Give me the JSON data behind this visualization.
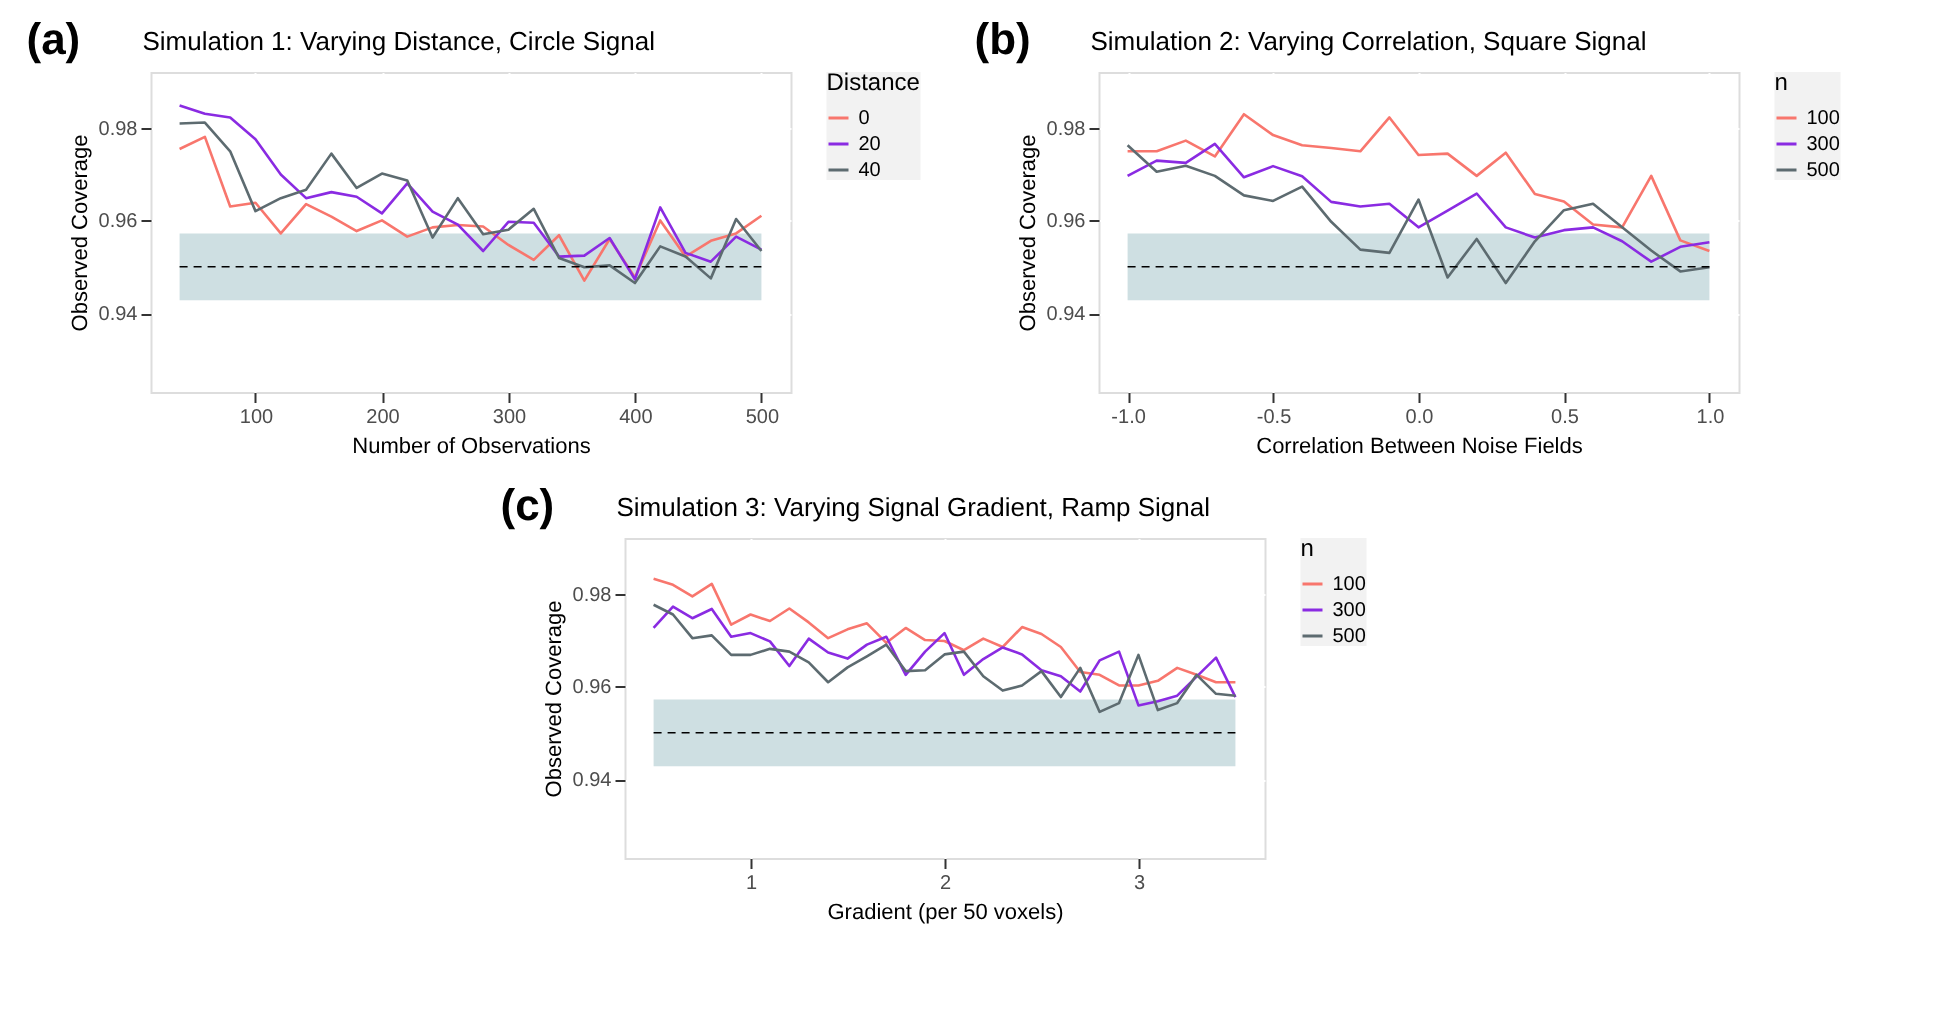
{
  "chart_data": [
    {
      "type": "line",
      "title": "Simulation 1: Varying Distance, Circle Signal",
      "annotations": [
        "(a)"
      ],
      "xlabel": "Number of Observations",
      "ylabel": "Observed Coverage",
      "legend_title": "Distance",
      "legend": "right",
      "grid": true,
      "x": [
        40,
        60,
        80,
        100,
        120,
        140,
        160,
        180,
        200,
        220,
        240,
        260,
        280,
        300,
        320,
        340,
        360,
        380,
        400,
        420,
        440,
        460,
        480,
        500
      ],
      "xlim": [
        17,
        523
      ],
      "xticks": [
        100,
        200,
        300,
        400,
        500
      ],
      "ylim": [
        0.923,
        0.992
      ],
      "yticks": [
        0.94,
        0.96,
        0.98
      ],
      "bands": [
        {
          "axis": "y",
          "from": 0.9428,
          "to": 0.9572,
          "color": "#c5d9dd"
        }
      ],
      "ref_lines": [
        {
          "axis": "y",
          "value": 0.95,
          "color": "#000000",
          "line_style": "dashed"
        }
      ],
      "series": [
        {
          "name": "0",
          "color": "#f8766d",
          "values": [
            0.9754,
            0.978,
            0.963,
            0.9638,
            0.9572,
            0.9635,
            0.9608,
            0.9577,
            0.96,
            0.9565,
            0.9585,
            0.959,
            0.9587,
            0.9547,
            0.9515,
            0.9568,
            0.947,
            0.956,
            0.9477,
            0.96,
            0.9522,
            0.9556,
            0.9572,
            0.961
          ]
        },
        {
          "name": "20",
          "color": "#8a2be2",
          "values": [
            0.9848,
            0.983,
            0.9822,
            0.9775,
            0.9699,
            0.9648,
            0.9661,
            0.9651,
            0.9615,
            0.968,
            0.9619,
            0.9591,
            0.9534,
            0.9597,
            0.9595,
            0.9522,
            0.9524,
            0.9562,
            0.9473,
            0.9628,
            0.953,
            0.9511,
            0.9565,
            0.9537
          ]
        },
        {
          "name": "40",
          "color": "#5d6b70",
          "values": [
            0.9809,
            0.9811,
            0.9749,
            0.962,
            0.9648,
            0.9666,
            0.9744,
            0.967,
            0.9701,
            0.9686,
            0.9563,
            0.9648,
            0.957,
            0.958,
            0.9625,
            0.9519,
            0.9499,
            0.9503,
            0.9465,
            0.9544,
            0.9522,
            0.9475,
            0.9603,
            0.9534
          ]
        }
      ]
    },
    {
      "type": "line",
      "title": "Simulation 2: Varying Correlation, Square Signal",
      "annotations": [
        "(b)"
      ],
      "xlabel": "Correlation Between Noise Fields",
      "ylabel": "Observed Coverage",
      "legend_title": "n",
      "legend": "right",
      "grid": true,
      "x": [
        -1.0,
        -0.9,
        -0.8,
        -0.7,
        -0.6,
        -0.5,
        -0.4,
        -0.3,
        -0.2,
        -0.1,
        0.0,
        0.1,
        0.2,
        0.3,
        0.4,
        0.5,
        0.6,
        0.7,
        0.8,
        0.9,
        1.0
      ],
      "xlim": [
        -1.1,
        1.1
      ],
      "xticks": [
        {
          "value": -1,
          "label": "-1.0"
        },
        {
          "value": -0.5,
          "label": "-0.5"
        },
        {
          "value": 0,
          "label": "0.0"
        },
        {
          "value": 0.5,
          "label": "0.5"
        },
        {
          "value": 1,
          "label": "1.0"
        }
      ],
      "ylim": [
        0.923,
        0.992
      ],
      "yticks": [
        0.94,
        0.96,
        0.98
      ],
      "bands": [
        {
          "axis": "y",
          "from": 0.9428,
          "to": 0.9572,
          "color": "#c5d9dd"
        }
      ],
      "ref_lines": [
        {
          "axis": "y",
          "value": 0.95,
          "color": "#000000",
          "line_style": "dashed"
        }
      ],
      "series": [
        {
          "name": "100",
          "color": "#f8766d",
          "values": [
            0.9749,
            0.9749,
            0.9772,
            0.9738,
            0.9829,
            0.9784,
            0.9762,
            0.9756,
            0.9749,
            0.9822,
            0.9741,
            0.9744,
            0.9696,
            0.9746,
            0.9657,
            0.9641,
            0.9591,
            0.9585,
            0.9696,
            0.9557,
            0.9534
          ]
        },
        {
          "name": "300",
          "color": "#8a2be2",
          "values": [
            0.9696,
            0.9729,
            0.9724,
            0.9765,
            0.9693,
            0.9717,
            0.9695,
            0.964,
            0.963,
            0.9636,
            0.9585,
            0.9621,
            0.9658,
            0.9585,
            0.9563,
            0.9579,
            0.9585,
            0.9555,
            0.9511,
            0.9543,
            0.9553
          ]
        },
        {
          "name": "500",
          "color": "#5d6b70",
          "values": [
            0.9762,
            0.9705,
            0.9718,
            0.9696,
            0.9654,
            0.9642,
            0.9673,
            0.9597,
            0.9537,
            0.953,
            0.9645,
            0.9477,
            0.956,
            0.9465,
            0.9555,
            0.9622,
            0.9636,
            0.9585,
            0.9535,
            0.949,
            0.9499
          ]
        }
      ]
    },
    {
      "type": "line",
      "title": "Simulation 3: Varying Signal Gradient, Ramp Signal",
      "annotations": [
        "(c)"
      ],
      "xlabel": "Gradient (per 50 voxels)",
      "ylabel": "Observed Coverage",
      "legend_title": "n",
      "legend": "right",
      "grid": true,
      "x": [
        0.5,
        0.6,
        0.7,
        0.8,
        0.9,
        1.0,
        1.1,
        1.2,
        1.3,
        1.4,
        1.5,
        1.6,
        1.7,
        1.8,
        1.9,
        2.0,
        2.1,
        2.2,
        2.3,
        2.4,
        2.5,
        2.6,
        2.7,
        2.8,
        2.9,
        3.0,
        3.1,
        3.2,
        3.3,
        3.4,
        3.5
      ],
      "xlim": [
        0.35,
        3.65
      ],
      "xticks": [
        {
          "value": 1,
          "label": "1"
        },
        {
          "value": 2,
          "label": "2"
        },
        {
          "value": 3,
          "label": "3"
        }
      ],
      "ylim": [
        0.923,
        0.992
      ],
      "yticks": [
        0.94,
        0.96,
        0.98
      ],
      "bands": [
        {
          "axis": "y",
          "from": 0.9428,
          "to": 0.9572,
          "color": "#c5d9dd"
        }
      ],
      "ref_lines": [
        {
          "axis": "y",
          "value": 0.95,
          "color": "#000000",
          "line_style": "dashed"
        }
      ],
      "series": [
        {
          "name": "100",
          "color": "#f8766d",
          "values": [
            0.9832,
            0.9819,
            0.9794,
            0.9821,
            0.9733,
            0.9755,
            0.9741,
            0.9768,
            0.9738,
            0.9704,
            0.9723,
            0.9736,
            0.9694,
            0.9726,
            0.97,
            0.9698,
            0.9678,
            0.9703,
            0.9685,
            0.9728,
            0.9713,
            0.9685,
            0.9631,
            0.9625,
            0.9602,
            0.9602,
            0.9612,
            0.964,
            0.9625,
            0.9609,
            0.9609
          ]
        },
        {
          "name": "300",
          "color": "#8a2be2",
          "values": [
            0.9726,
            0.9772,
            0.9747,
            0.9767,
            0.9707,
            0.9715,
            0.9697,
            0.9644,
            0.9703,
            0.9673,
            0.966,
            0.969,
            0.9707,
            0.9625,
            0.9675,
            0.9715,
            0.9625,
            0.9659,
            0.9684,
            0.9669,
            0.9635,
            0.9622,
            0.9589,
            0.9656,
            0.9675,
            0.9559,
            0.9568,
            0.958,
            0.9621,
            0.9662,
            0.9577
          ]
        },
        {
          "name": "500",
          "color": "#5d6b70",
          "values": [
            0.9776,
            0.9755,
            0.9704,
            0.971,
            0.9668,
            0.9668,
            0.9681,
            0.9675,
            0.9652,
            0.9609,
            0.9641,
            0.9665,
            0.969,
            0.9633,
            0.9635,
            0.9669,
            0.9675,
            0.9622,
            0.9591,
            0.9602,
            0.9633,
            0.9577,
            0.964,
            0.9545,
            0.9564,
            0.9668,
            0.9549,
            0.9564,
            0.9625,
            0.9584,
            0.958
          ]
        }
      ]
    }
  ]
}
